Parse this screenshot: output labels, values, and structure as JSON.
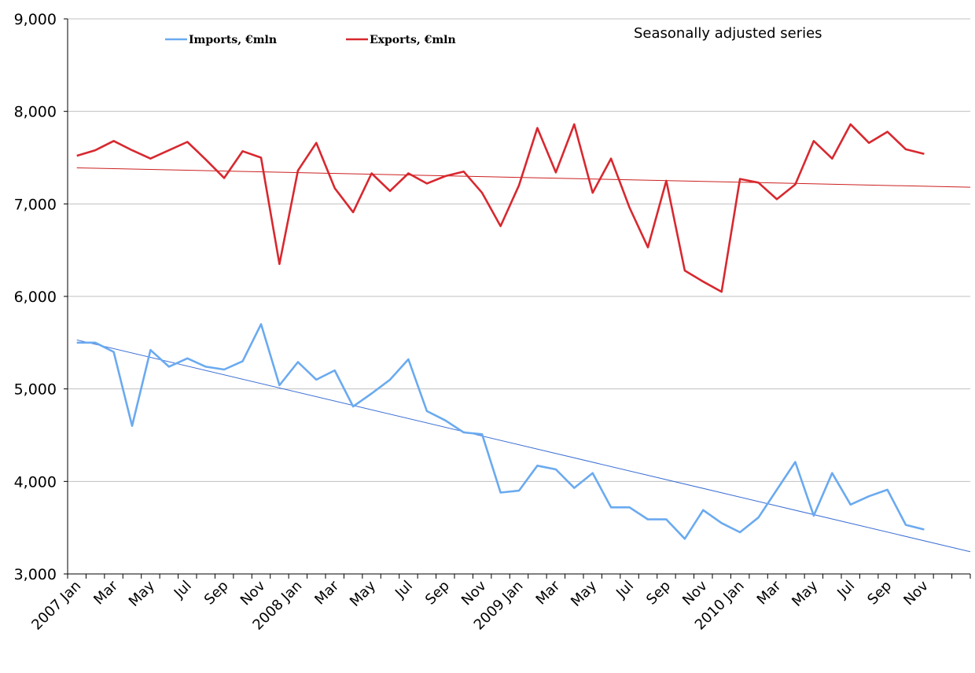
{
  "chart_data": {
    "type": "line",
    "annotation": "Seasonally adjusted series",
    "ylim": [
      3000,
      9000
    ],
    "yticks": [
      3000,
      4000,
      5000,
      6000,
      7000,
      8000,
      9000
    ],
    "ytick_labels": [
      "3,000",
      "4,000",
      "5,000",
      "6,000",
      "7,000",
      "8,000",
      "9,000"
    ],
    "grid": "horizontal",
    "legend": "top-left",
    "x_tick_labels": [
      "2007 Jan",
      "Mar",
      "May",
      "Jul",
      "Sep",
      "Nov",
      "2008 Jan",
      "Mar",
      "May",
      "Jul",
      "Sep",
      "Nov",
      "2009 Jan",
      "Mar",
      "May",
      "Jul",
      "Sep",
      "Nov",
      "2010 Jan",
      "Mar",
      "May",
      "Jul",
      "Sep",
      "Nov"
    ],
    "x": [
      "2007-01",
      "2007-02",
      "2007-03",
      "2007-04",
      "2007-05",
      "2007-06",
      "2007-07",
      "2007-08",
      "2007-09",
      "2007-10",
      "2007-11",
      "2007-12",
      "2008-01",
      "2008-02",
      "2008-03",
      "2008-04",
      "2008-05",
      "2008-06",
      "2008-07",
      "2008-08",
      "2008-09",
      "2008-10",
      "2008-11",
      "2008-12",
      "2009-01",
      "2009-02",
      "2009-03",
      "2009-04",
      "2009-05",
      "2009-06",
      "2009-07",
      "2009-08",
      "2009-09",
      "2009-10",
      "2009-11",
      "2009-12",
      "2010-01",
      "2010-02",
      "2010-03",
      "2010-04",
      "2010-05",
      "2010-06",
      "2010-07",
      "2010-08",
      "2010-09",
      "2010-10",
      "2010-11"
    ],
    "series": [
      {
        "name": "Imports, €mln",
        "color": "#6aaaf0",
        "values": [
          5500,
          5500,
          5400,
          4600,
          5420,
          5240,
          5330,
          5240,
          5210,
          5300,
          5700,
          5040,
          5290,
          5100,
          5200,
          4810,
          4950,
          5100,
          5320,
          4760,
          4660,
          4530,
          4510,
          3880,
          3900,
          4170,
          4130,
          3930,
          4090,
          3720,
          3720,
          3590,
          3590,
          3380,
          3690,
          3550,
          3450,
          3610,
          3910,
          4210,
          3630,
          4090,
          3750,
          3840,
          3910,
          3530,
          3480
        ]
      },
      {
        "name": "Exports, €mln",
        "color": "#d8282f",
        "values": [
          7520,
          7580,
          7680,
          7580,
          7490,
          7580,
          7670,
          7480,
          7280,
          7570,
          7500,
          6350,
          7360,
          7660,
          7170,
          6910,
          7330,
          7140,
          7330,
          7220,
          7300,
          7350,
          7120,
          6760,
          7200,
          7820,
          7340,
          7860,
          7120,
          7490,
          6960,
          6530,
          7250,
          6280,
          6160,
          6050,
          7270,
          7230,
          7050,
          7210,
          7680,
          7490,
          7860,
          7660,
          7780,
          7590,
          7540
        ]
      }
    ],
    "trendlines": [
      {
        "of": "Imports, €mln",
        "color": "#3b6fd4",
        "start": 5530,
        "end": 3240
      },
      {
        "of": "Exports, €mln",
        "color": "#cc1f1f",
        "start": 7390,
        "end": 7180
      }
    ]
  }
}
